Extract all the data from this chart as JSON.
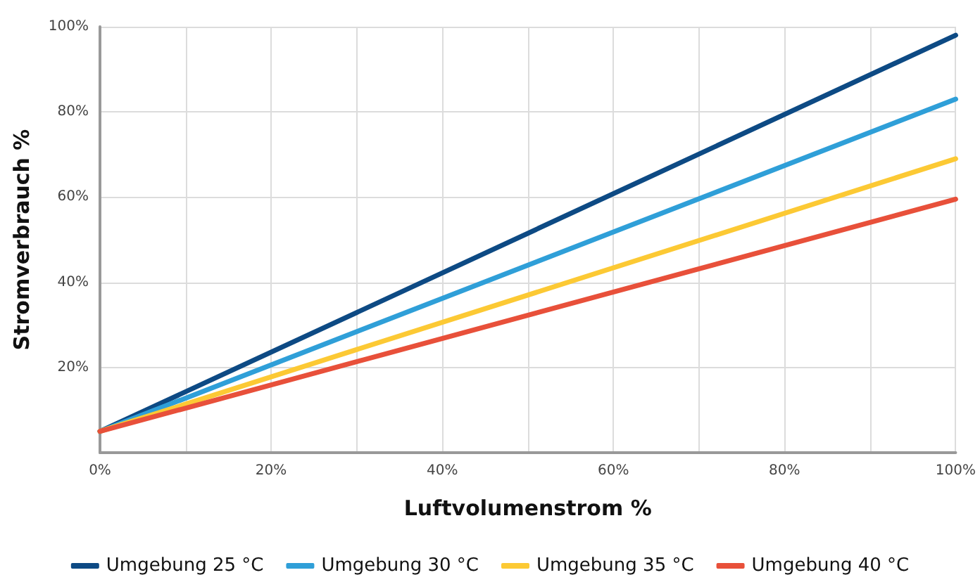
{
  "chart_data": {
    "type": "line",
    "xlabel": "Luftvolumenstrom %",
    "ylabel": "Stromverbrauch %",
    "x": [
      0,
      100
    ],
    "series": [
      {
        "name": "Umgebung 25 °C",
        "color": "#0d4a84",
        "values": [
          5,
          98
        ]
      },
      {
        "name": "Umgebung 30 °C",
        "color": "#2f9fd8",
        "values": [
          5,
          83
        ]
      },
      {
        "name": "Umgebung 35 °C",
        "color": "#fcc934",
        "values": [
          5,
          69
        ]
      },
      {
        "name": "Umgebung 40 °C",
        "color": "#e8503a",
        "values": [
          5,
          59.5
        ]
      }
    ],
    "xlim": [
      0,
      100
    ],
    "ylim": [
      0,
      100
    ],
    "xticks": [
      {
        "value": 0,
        "label": "0%"
      },
      {
        "value": 10,
        "label": null
      },
      {
        "value": 20,
        "label": "20%"
      },
      {
        "value": 30,
        "label": null
      },
      {
        "value": 40,
        "label": "40%"
      },
      {
        "value": 50,
        "label": null
      },
      {
        "value": 60,
        "label": "60%"
      },
      {
        "value": 70,
        "label": null
      },
      {
        "value": 80,
        "label": "80%"
      },
      {
        "value": 90,
        "label": null
      },
      {
        "value": 100,
        "label": "100%"
      }
    ],
    "yticks": [
      {
        "value": 0,
        "label": null
      },
      {
        "value": 20,
        "label": "20%"
      },
      {
        "value": 40,
        "label": "40%"
      },
      {
        "value": 60,
        "label": "60%"
      },
      {
        "value": 80,
        "label": "80%"
      },
      {
        "value": 100,
        "label": "100%"
      }
    ],
    "grid": true,
    "legend": "bottom",
    "marker": "none",
    "line_style": "solid"
  }
}
